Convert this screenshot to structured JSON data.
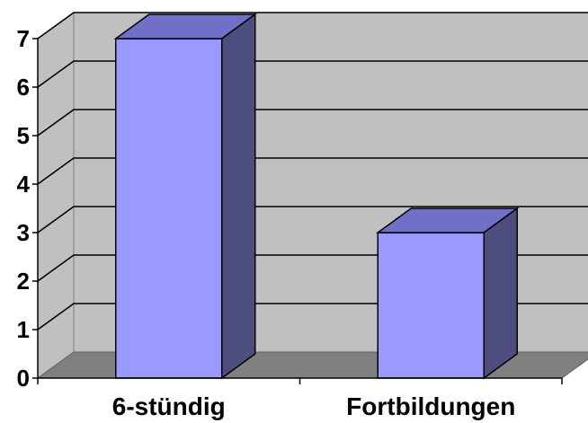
{
  "chart_data": {
    "type": "bar",
    "style": "3d-column",
    "title": "",
    "xlabel": "",
    "ylabel": "",
    "categories": [
      "6-stündig",
      "Fortbildungen"
    ],
    "values": [
      7,
      3
    ],
    "ylim": [
      0,
      7
    ],
    "yticks": [
      "0",
      "1",
      "2",
      "3",
      "4",
      "5",
      "6",
      "7"
    ],
    "grid": true,
    "legend": "none",
    "colors": {
      "bar_front": "#9999ff",
      "bar_top": "#7070c8",
      "bar_side": "#4d4d80",
      "wall": "#c0c0c0",
      "floor": "#808080",
      "gridline": "#000000"
    }
  }
}
